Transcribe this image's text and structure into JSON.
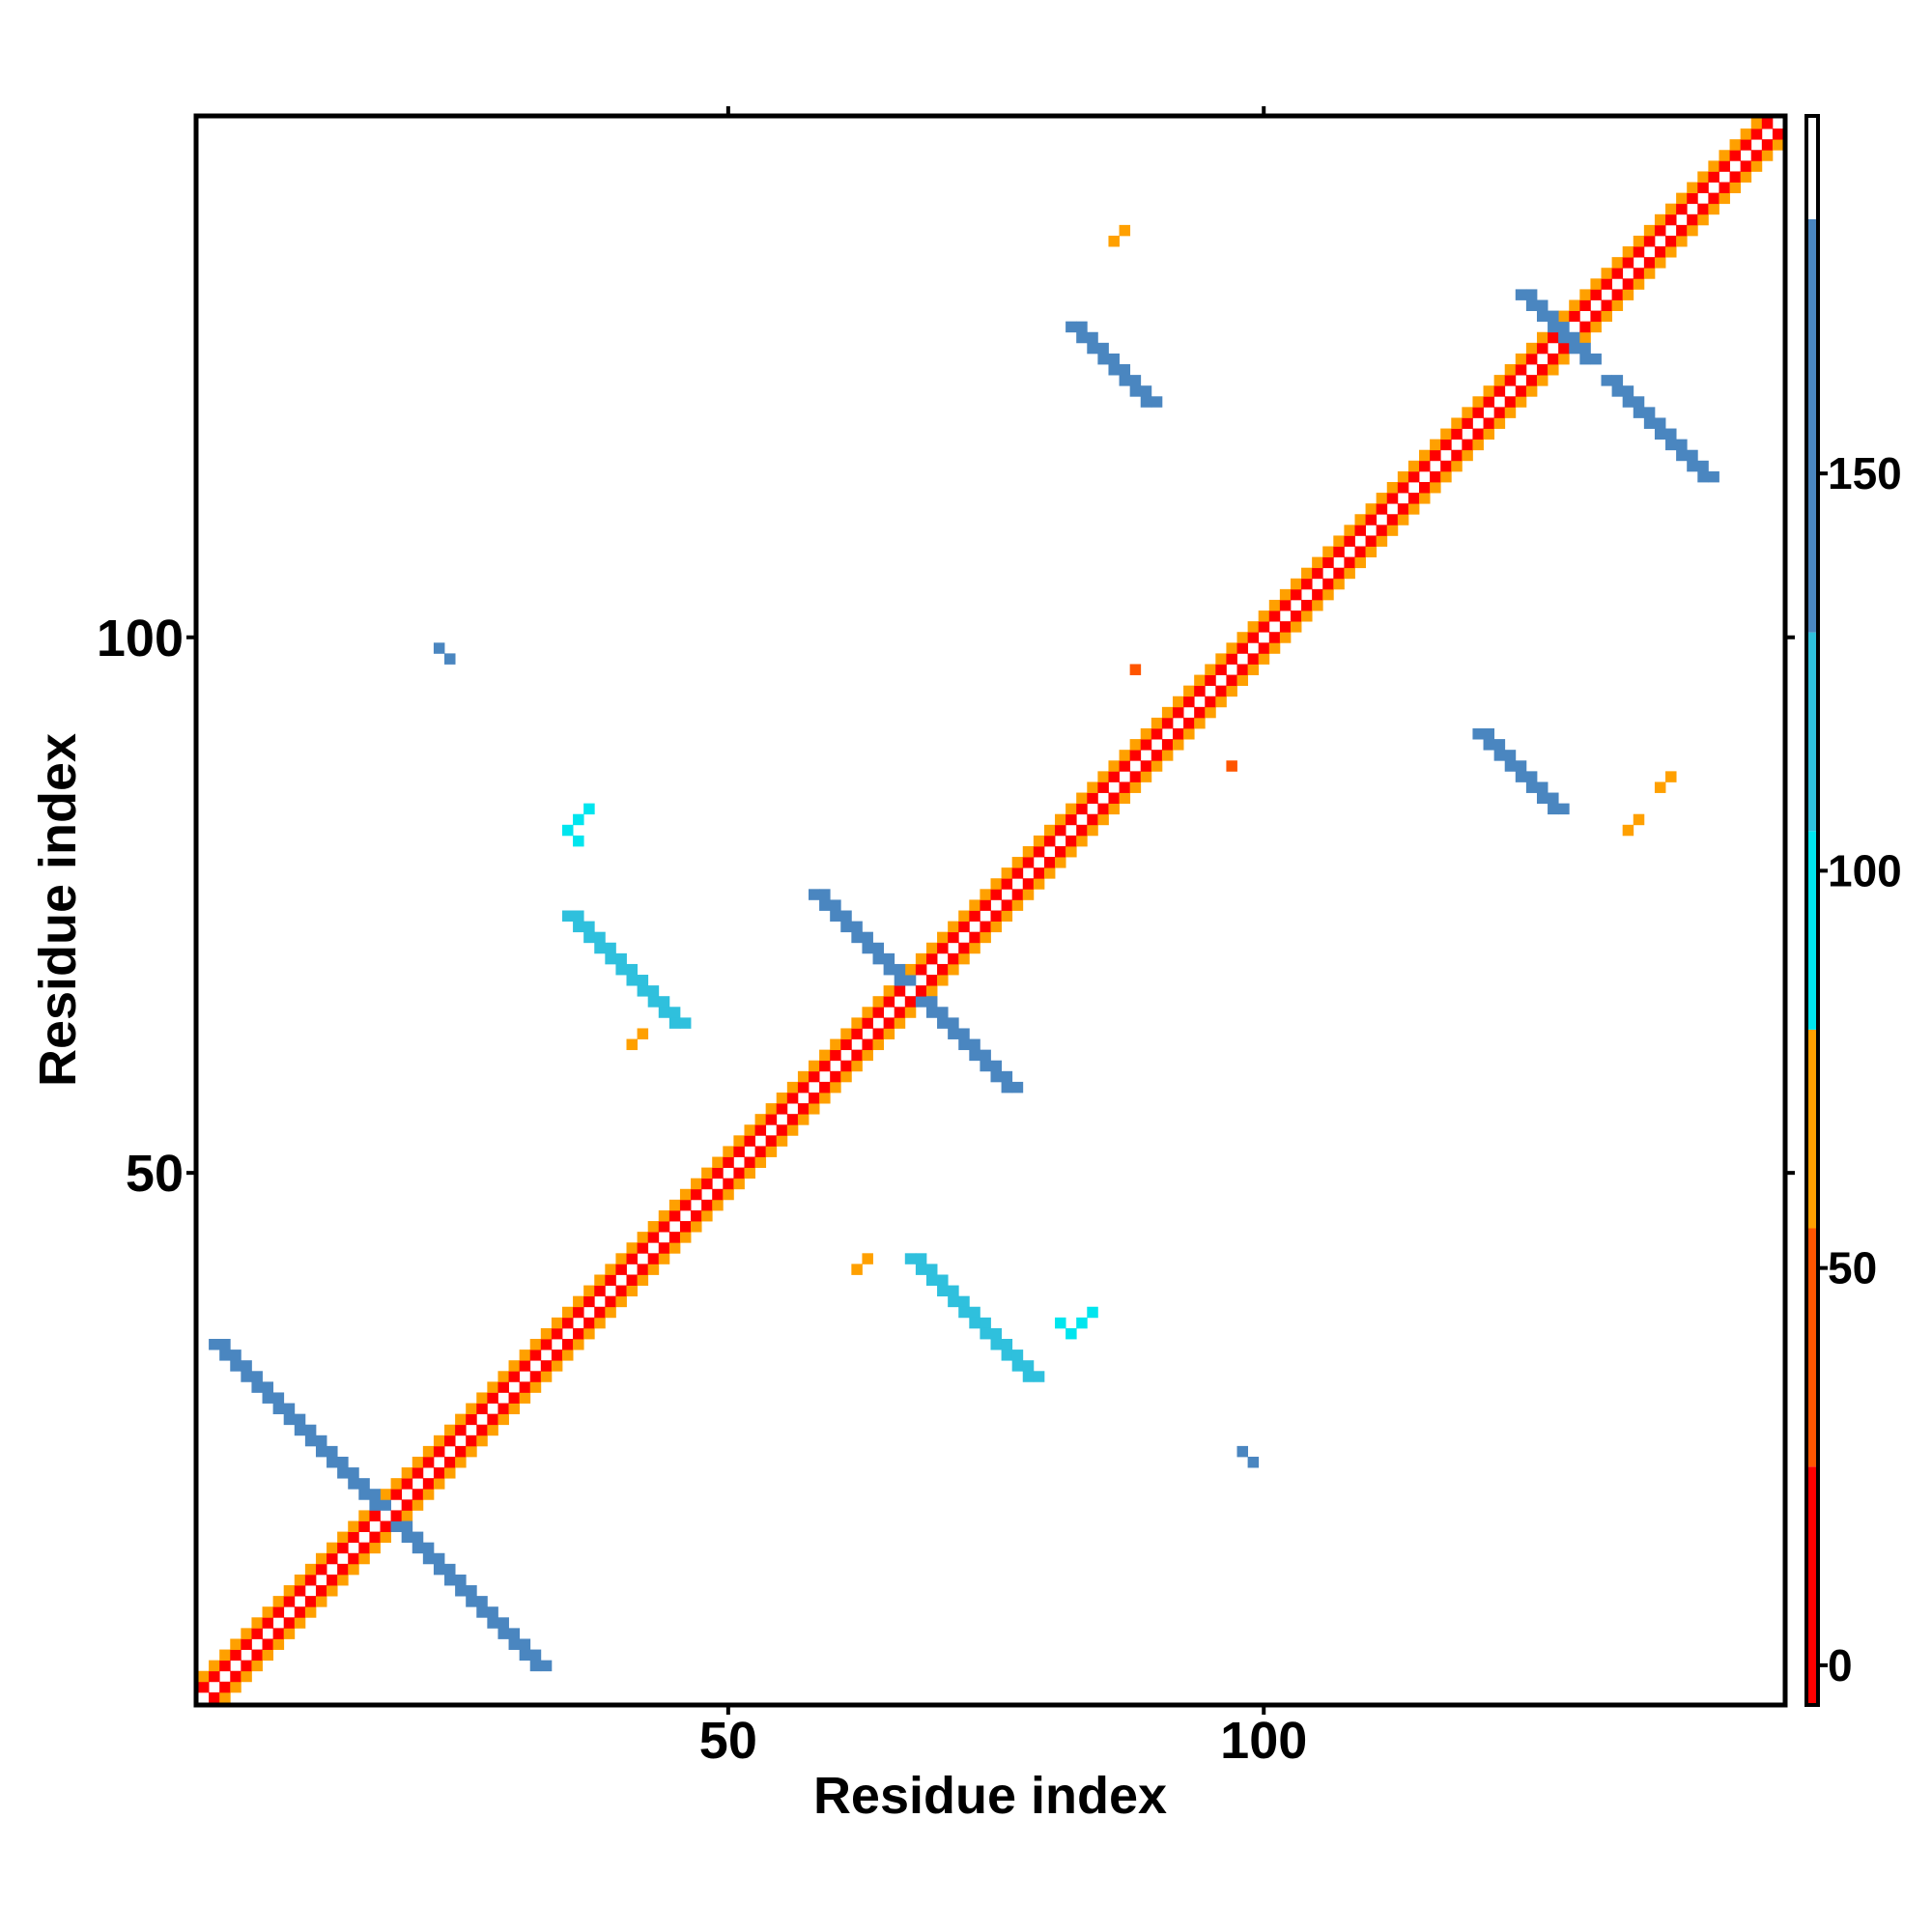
{
  "chart_data": {
    "type": "heatmap",
    "title": "",
    "xlabel": "Residue index",
    "ylabel": "Residue index",
    "xlim": [
      1,
      148
    ],
    "ylim": [
      1,
      148
    ],
    "x_ticks": [
      50,
      100
    ],
    "y_ticks": [
      50,
      100
    ],
    "grid": false,
    "colorbar": {
      "ticks": [
        0,
        50,
        100,
        150
      ],
      "range": [
        -5,
        195
      ],
      "bands": [
        {
          "from": -5,
          "to": 25,
          "color": "#ff0000"
        },
        {
          "from": 25,
          "to": 55,
          "color": "#ff5500"
        },
        {
          "from": 55,
          "to": 80,
          "color": "#ffa000"
        },
        {
          "from": 80,
          "to": 105,
          "color": "#00e5ee"
        },
        {
          "from": 105,
          "to": 130,
          "color": "#2fc0dd"
        },
        {
          "from": 130,
          "to": 182,
          "color": "#4a86c0"
        },
        {
          "from": 182,
          "to": 195,
          "color": "#ffffff"
        }
      ]
    },
    "cell_features": [
      {
        "kind": "diagonal",
        "from": 1,
        "to": 148,
        "near_value": 20,
        "far_value": 60
      },
      {
        "kind": "antidiagonal",
        "sum": 36,
        "from": 2,
        "to": 17,
        "value": 150
      },
      {
        "kind": "antidiagonal",
        "sum": 36,
        "from": 19,
        "to": 32,
        "value": 150
      },
      {
        "kind": "antidiagonal",
        "sum": 134,
        "from": 58,
        "to": 66,
        "value": 150
      },
      {
        "kind": "antidiagonal",
        "sum": 134,
        "from": 68,
        "to": 76,
        "value": 150
      },
      {
        "kind": "antidiagonal",
        "sum": 256,
        "from": 124,
        "to": 130,
        "value": 150
      },
      {
        "kind": "antidiagonal",
        "sum": 256,
        "from": 132,
        "to": 141,
        "value": 150
      },
      {
        "kind": "antidiagonal",
        "sum": 109,
        "from": 35,
        "to": 45,
        "value": 120
      },
      {
        "kind": "antidiagonal",
        "sum": 109,
        "from": 67,
        "to": 78,
        "value": 120
      },
      {
        "kind": "antidiagonal",
        "sum": 211,
        "from": 82,
        "to": 89,
        "value": 140
      },
      {
        "kind": "antidiagonal",
        "sum": 211,
        "from": 120,
        "to": 127,
        "value": 140
      },
      {
        "kind": "cells",
        "value": 100,
        "points": [
          [
            35,
            82
          ],
          [
            36,
            81
          ],
          [
            82,
            35
          ],
          [
            81,
            36
          ],
          [
            83,
            36
          ],
          [
            84,
            37
          ],
          [
            36,
            83
          ],
          [
            37,
            84
          ]
        ]
      },
      {
        "kind": "cells",
        "value": 60,
        "points": [
          [
            41,
            62
          ],
          [
            42,
            63
          ],
          [
            62,
            41
          ],
          [
            63,
            42
          ],
          [
            86,
            137
          ],
          [
            87,
            138
          ],
          [
            137,
            86
          ],
          [
            138,
            87
          ],
          [
            135,
            83
          ],
          [
            134,
            82
          ]
        ]
      },
      {
        "kind": "cells",
        "value": 40,
        "points": [
          [
            88,
            97
          ],
          [
            97,
            88
          ]
        ]
      },
      {
        "kind": "cells",
        "value": 150,
        "points": [
          [
            23,
            99
          ],
          [
            24,
            98
          ],
          [
            99,
            23
          ],
          [
            98,
            24
          ]
        ]
      }
    ]
  }
}
